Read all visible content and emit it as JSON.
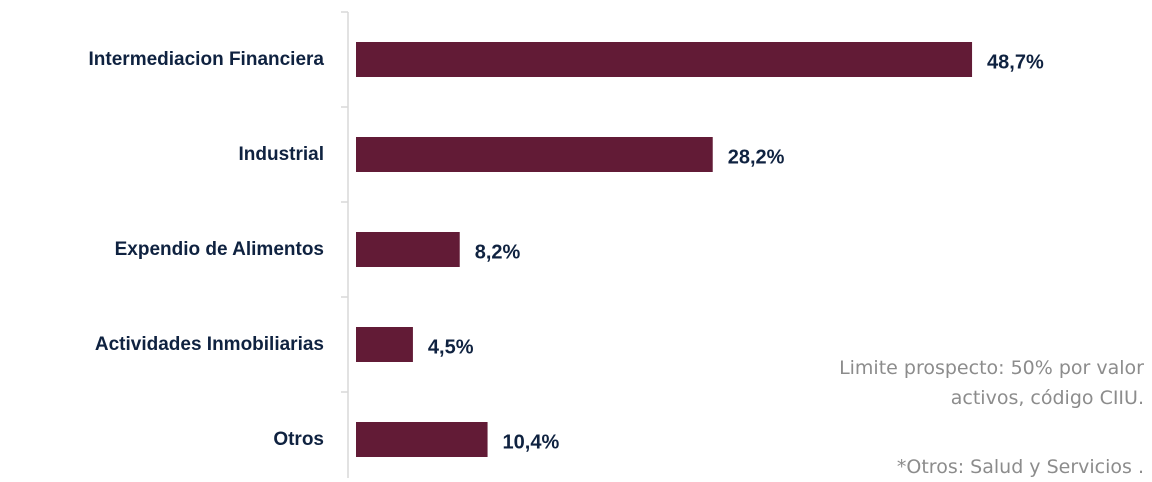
{
  "chart_data": {
    "type": "bar",
    "orientation": "horizontal",
    "categories": [
      "Intermediacion Financiera",
      "Industrial",
      "Expendio de Alimentos",
      "Actividades Inmobiliarias",
      "Otros"
    ],
    "values": [
      48.7,
      28.2,
      8.2,
      4.5,
      10.4
    ],
    "data_labels": [
      "48,7%",
      "28,2%",
      "8,2%",
      "4,5%",
      "10,4%"
    ],
    "xlim": [
      0,
      50
    ],
    "grid": false,
    "bar_color": "#621b36",
    "label_color": "#0f2240"
  },
  "notes": {
    "limit_line1": "Limite prospecto: 50% por valor",
    "limit_line2": "activos, código CIIU.",
    "otros": "*Otros: Salud y Servicios ."
  },
  "colors": {
    "note_text": "#8c8c8c",
    "axis": "#d9d9d9"
  }
}
